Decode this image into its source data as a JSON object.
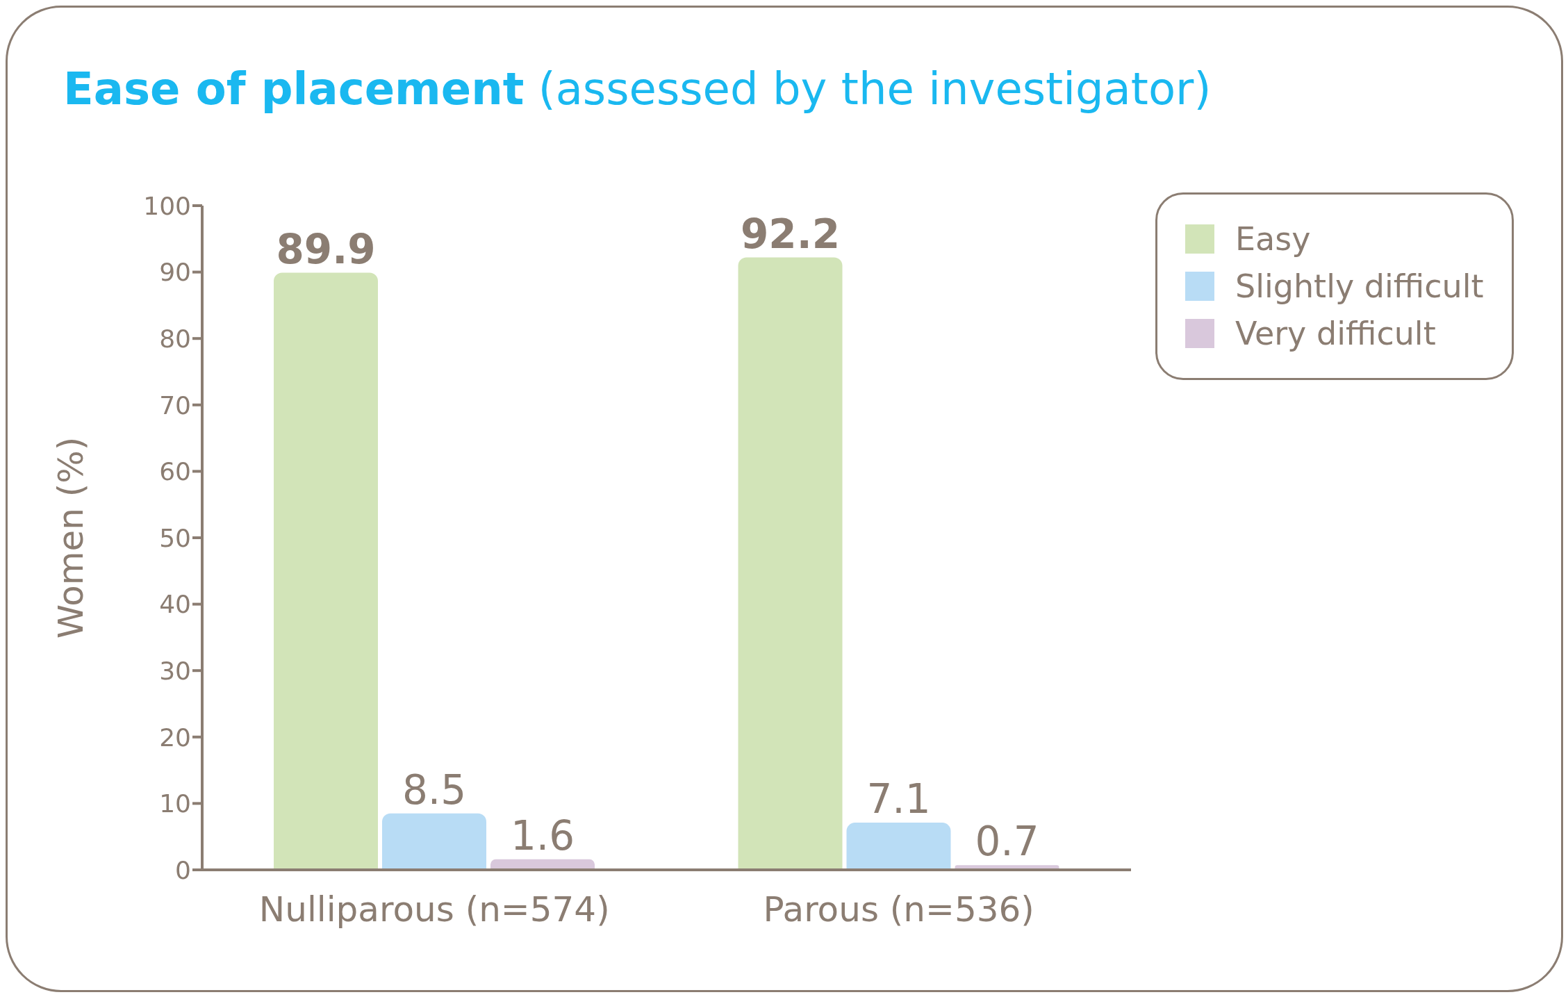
{
  "chart_data": {
    "type": "bar",
    "title": "Ease of placement",
    "subtitle": "(assessed by the investigator)",
    "ylabel": "Women (%)",
    "categories": [
      "Nulliparous (n=574)",
      "Parous (n=536)"
    ],
    "series": [
      {
        "name": "Easy",
        "color": "#d2e4b8",
        "values": [
          89.9,
          92.2
        ]
      },
      {
        "name": "Slightly difficult",
        "color": "#b8dcf5",
        "values": [
          8.5,
          7.1
        ]
      },
      {
        "name": "Very difficult",
        "color": "#d9c8dc",
        "values": [
          1.6,
          0.7
        ]
      }
    ],
    "ylim": [
      0,
      100
    ],
    "yticks": [
      0,
      10,
      20,
      30,
      40,
      50,
      60,
      70,
      80,
      90,
      100
    ],
    "grid": false,
    "legend": "top right",
    "data_labels": true
  }
}
